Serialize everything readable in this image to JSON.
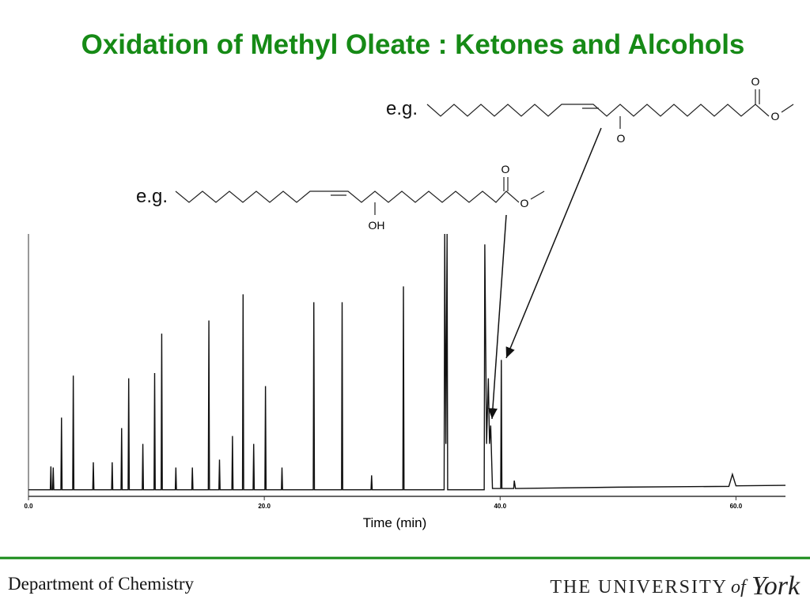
{
  "title": "Oxidation of Methyl Oleate : Ketones and Alcohols",
  "annotations": {
    "ketone_eg": "e.g.",
    "alcohol_eg": "e.g.",
    "ketone_atoms": [
      "O",
      "O",
      "O"
    ],
    "alcohol_atoms": [
      "O",
      "O",
      "OH"
    ]
  },
  "chart_data": {
    "type": "line",
    "x_label": "Time (min)",
    "xlim": [
      0,
      64.2
    ],
    "ylim": [
      0,
      100
    ],
    "xticks": [
      {
        "value": 0,
        "label": "0.0"
      },
      {
        "value": 20,
        "label": "20.0"
      },
      {
        "value": 40,
        "label": "40.0"
      },
      {
        "value": 60,
        "label": "60.0"
      }
    ],
    "series": [
      {
        "color": "#111111",
        "x": [
          0,
          1.85,
          1.9,
          1.95,
          2.05,
          2.1,
          2.15,
          2.75,
          2.8,
          2.85,
          3.75,
          3.8,
          3.85,
          5.45,
          5.5,
          5.55,
          7.05,
          7.1,
          7.15,
          7.85,
          7.9,
          7.95,
          8.45,
          8.5,
          8.55,
          9.65,
          9.7,
          9.75,
          10.65,
          10.7,
          10.75,
          11.25,
          11.3,
          11.35,
          12.45,
          12.5,
          12.55,
          13.85,
          13.9,
          13.95,
          15.25,
          15.3,
          15.35,
          16.15,
          16.2,
          16.25,
          17.25,
          17.3,
          17.35,
          18.15,
          18.2,
          18.25,
          19.05,
          19.1,
          19.15,
          20.05,
          20.1,
          20.15,
          21.45,
          21.5,
          21.55,
          24.15,
          24.2,
          24.25,
          26.55,
          26.6,
          26.65,
          29.05,
          29.1,
          29.15,
          31.75,
          31.8,
          31.85,
          35.25,
          35.3,
          35.4,
          35.5,
          35.55,
          38.65,
          38.7,
          38.85,
          39.0,
          39.1,
          39.2,
          39.35,
          40.05,
          40.1,
          40.15,
          41.15,
          41.2,
          41.3,
          50,
          59.4,
          59.7,
          60.0,
          64.2
        ],
        "values": [
          2.5,
          2.5,
          11.4,
          2.5,
          2.5,
          11,
          2.5,
          2.5,
          30,
          2.5,
          2.5,
          46,
          2.5,
          2.5,
          13,
          2.5,
          2.5,
          13,
          2.5,
          2.5,
          26,
          2.5,
          2.5,
          45,
          2.5,
          2.5,
          20,
          2.5,
          2.5,
          47,
          2.5,
          2.5,
          62,
          2.5,
          2.5,
          11,
          2.5,
          2.5,
          11,
          2.5,
          2.5,
          67,
          2.5,
          2.5,
          14,
          2.5,
          2.5,
          23,
          2.5,
          2.5,
          77,
          2.5,
          2.5,
          20,
          2.5,
          2.5,
          42,
          2.5,
          2.5,
          11,
          2.5,
          2.5,
          74,
          2.5,
          2.5,
          74,
          2.5,
          2.5,
          8,
          2.5,
          2.5,
          80,
          2.5,
          2.5,
          100,
          20,
          100,
          2.5,
          2.5,
          96,
          20,
          45,
          20,
          27,
          3,
          3,
          52,
          3,
          3,
          6,
          3,
          3.5,
          3.8,
          8.4,
          4,
          4.2
        ]
      }
    ]
  },
  "footer": {
    "department": "Department of Chemistry",
    "university": "THE UNIVERSITY",
    "of": "of",
    "york": "York"
  }
}
